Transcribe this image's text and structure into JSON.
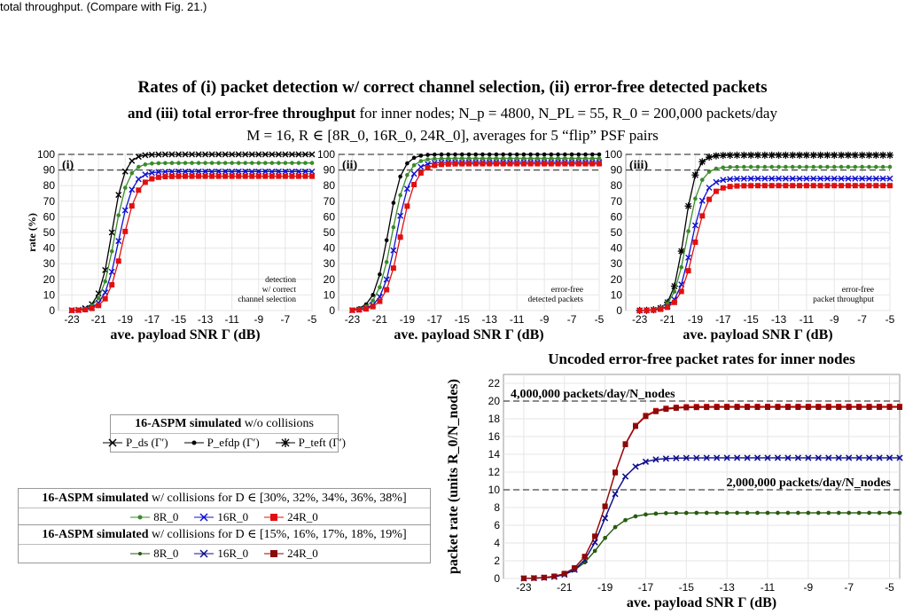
{
  "caption": "total throughput. (Compare with Fig. 21.)",
  "header": {
    "line1": "Rates of (i) packet detection w/ correct channel selection, (ii) error-free detected packets",
    "line2_bold": "and (iii) total error-free throughput",
    "line2_rest": " for inner nodes;  N_p = 4800,  N_PL = 55,  R_0 = 200,000 packets/day",
    "line3": "M = 16,  R ∈ [8R_0, 16R_0, 24R_0],  averages for 5 “flip” PSF pairs"
  },
  "legend": {
    "box1": {
      "header_bold": "16-ASPM simulated",
      "header_rest": " w/o collisions",
      "entries": [
        "P_ds (Γ′)",
        "P_efdp (Γ′)",
        "P_teft (Γ′)"
      ]
    },
    "box2": {
      "header_bold": "16-ASPM simulated",
      "header_rest": " w/ collisions for D ∈ [30%, 32%, 34%, 36%, 38%]",
      "entries": [
        "8R_0",
        "16R_0",
        "24R_0"
      ]
    },
    "box3": {
      "header_bold": "16-ASPM simulated",
      "header_rest": " w/ collisions for D ∈ [15%, 16%, 17%, 18%, 19%]",
      "entries": [
        "8R_0",
        "16R_0",
        "24R_0"
      ]
    }
  },
  "colors": {
    "black": "#000000",
    "green": "#3a8a2a",
    "darkgreen": "#2a5a10",
    "blue": "#1010d0",
    "darkblue": "#10108a",
    "red": "#e01010",
    "darkred": "#8a0a0a"
  },
  "chart_data": [
    {
      "type": "line",
      "panel_label": "(i)",
      "annotation": [
        "detection",
        "w/ correct",
        "channel selection"
      ],
      "xlabel": "ave. payload SNR Γ (dB)",
      "ylabel": "rate (%)",
      "xlim": [
        -24,
        -5
      ],
      "ylim": [
        0,
        100
      ],
      "xticks": [
        -23,
        -21,
        -19,
        -17,
        -15,
        -13,
        -11,
        -9,
        -7,
        -5
      ],
      "yticks": [
        0,
        10,
        20,
        30,
        40,
        50,
        60,
        70,
        80,
        90,
        100
      ],
      "reference_lines": [
        100,
        90
      ],
      "series": [
        {
          "marker": "x",
          "color": "black",
          "sat": 100,
          "mid": -20.0,
          "k": 2.1
        },
        {
          "marker": "dot",
          "color": "green",
          "sat": 94.5,
          "mid": -19.8,
          "k": 2.0
        },
        {
          "marker": "x",
          "color": "blue",
          "sat": 89,
          "mid": -19.5,
          "k": 1.9
        },
        {
          "marker": "square",
          "color": "red",
          "sat": 86,
          "mid": -19.2,
          "k": 1.8
        }
      ]
    },
    {
      "type": "line",
      "panel_label": "(ii)",
      "annotation": [
        "error-free",
        "detected packets"
      ],
      "xlabel": "ave. payload SNR Γ (dB)",
      "ylabel": "",
      "xlim": [
        -24,
        -5
      ],
      "ylim": [
        0,
        100
      ],
      "xticks": [
        -23,
        -21,
        -19,
        -17,
        -15,
        -13,
        -11,
        -9,
        -7,
        -5
      ],
      "yticks": [
        0,
        10,
        20,
        30,
        40,
        50,
        60,
        70,
        80,
        90,
        100
      ],
      "reference_lines": [
        100,
        90
      ],
      "series": [
        {
          "marker": "dot",
          "color": "black",
          "sat": 100,
          "mid": -20.4,
          "k": 2.0
        },
        {
          "marker": "dot",
          "color": "green",
          "sat": 97.5,
          "mid": -20.1,
          "k": 1.9
        },
        {
          "marker": "x",
          "color": "blue",
          "sat": 95,
          "mid": -19.8,
          "k": 1.9
        },
        {
          "marker": "square",
          "color": "red",
          "sat": 94,
          "mid": -19.5,
          "k": 1.8
        }
      ]
    },
    {
      "type": "line",
      "panel_label": "(iii)",
      "annotation": [
        "error-free",
        "packet throughput"
      ],
      "xlabel": "ave. payload SNR Γ (dB)",
      "ylabel": "",
      "xlim": [
        -24,
        -5
      ],
      "ylim": [
        0,
        100
      ],
      "xticks": [
        -23,
        -21,
        -19,
        -17,
        -15,
        -13,
        -11,
        -9,
        -7,
        -5
      ],
      "yticks": [
        0,
        10,
        20,
        30,
        40,
        50,
        60,
        70,
        80,
        90,
        100
      ],
      "reference_lines": [
        100,
        90
      ],
      "series": [
        {
          "marker": "star",
          "color": "black",
          "sat": 99.5,
          "mid": -19.8,
          "k": 2.4
        },
        {
          "marker": "dot",
          "color": "green",
          "sat": 92,
          "mid": -19.6,
          "k": 2.1
        },
        {
          "marker": "x",
          "color": "blue",
          "sat": 84.5,
          "mid": -19.3,
          "k": 2.0
        },
        {
          "marker": "square",
          "color": "red",
          "sat": 80,
          "mid": -19.1,
          "k": 1.9
        }
      ]
    },
    {
      "type": "line",
      "title": "Uncoded error-free packet rates for inner nodes",
      "xlabel": "ave. payload SNR Γ (dB)",
      "ylabel": "packet rate (units R_0/N_nodes)",
      "xlim": [
        -24,
        -4.5
      ],
      "ylim": [
        0,
        23
      ],
      "xticks": [
        -23,
        -21,
        -19,
        -17,
        -15,
        -13,
        -11,
        -9,
        -7,
        -5
      ],
      "yticks": [
        0,
        2,
        4,
        6,
        8,
        10,
        12,
        14,
        16,
        18,
        20,
        22
      ],
      "reference_lines": [
        {
          "y": 20,
          "label": "4,000,000 packets/day/N_nodes"
        },
        {
          "y": 10,
          "label": "2,000,000 packets/day/N_nodes"
        }
      ],
      "series": [
        {
          "marker": "dot",
          "color": "green",
          "sat": 7.4,
          "mid": -19.3,
          "k": 1.6
        },
        {
          "marker": "dot",
          "color": "darkgreen",
          "sat": 7.4,
          "mid": -19.3,
          "k": 1.6
        },
        {
          "marker": "x",
          "color": "blue",
          "sat": 13.6,
          "mid": -19.0,
          "k": 1.7
        },
        {
          "marker": "x",
          "color": "darkblue",
          "sat": 13.6,
          "mid": -19.0,
          "k": 1.7
        },
        {
          "marker": "square",
          "color": "red",
          "sat": 19.4,
          "mid": -18.8,
          "k": 1.6
        },
        {
          "marker": "square",
          "color": "darkred",
          "sat": 19.3,
          "mid": -18.8,
          "k": 1.6
        }
      ]
    }
  ]
}
